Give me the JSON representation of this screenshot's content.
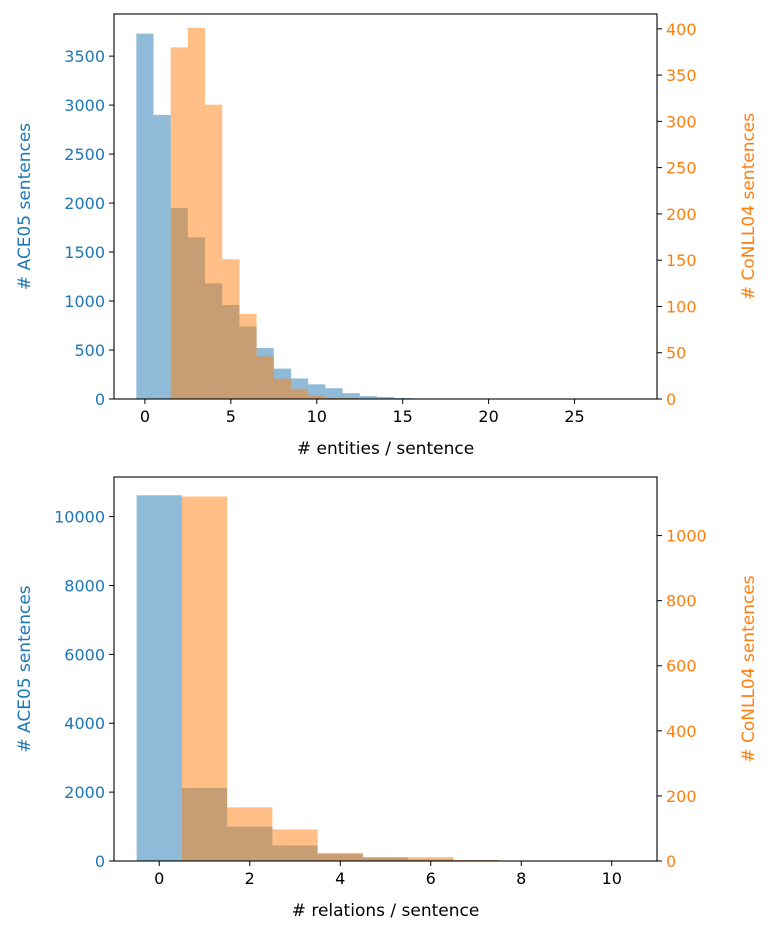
{
  "colors": {
    "ace05": "#1f77b4",
    "conll04": "#ff7f0e",
    "ace05_fill": "#1f77b4",
    "conll04_fill": "#ff7f0e",
    "axis": "#000000"
  },
  "chart_data": [
    {
      "type": "bar",
      "title": "",
      "xlabel": "# entities / sentence",
      "ylabel_left": "# ACE05 sentences",
      "ylabel_right": "# CoNLL04 sentences",
      "xlim": [
        -1.8,
        29.8
      ],
      "ylim_left": [
        0,
        3930
      ],
      "ylim_right": [
        0,
        416
      ],
      "x_ticks": [
        0,
        5,
        10,
        15,
        20,
        25
      ],
      "y_ticks_left": [
        0,
        500,
        1000,
        1500,
        2000,
        2500,
        3000,
        3500
      ],
      "y_ticks_right": [
        0,
        50,
        100,
        150,
        200,
        250,
        300,
        350,
        400
      ],
      "series": [
        {
          "name": "ACE05",
          "axis": "left",
          "bins": [
            {
              "x0": -0.5,
              "x1": 0.5,
              "value": 3730
            },
            {
              "x0": 0.5,
              "x1": 1.5,
              "value": 2900
            },
            {
              "x0": 1.5,
              "x1": 2.5,
              "value": 1950
            },
            {
              "x0": 2.5,
              "x1": 3.5,
              "value": 1650
            },
            {
              "x0": 3.5,
              "x1": 4.5,
              "value": 1180
            },
            {
              "x0": 4.5,
              "x1": 5.5,
              "value": 960
            },
            {
              "x0": 5.5,
              "x1": 6.5,
              "value": 740
            },
            {
              "x0": 6.5,
              "x1": 7.5,
              "value": 520
            },
            {
              "x0": 7.5,
              "x1": 8.5,
              "value": 310
            },
            {
              "x0": 8.5,
              "x1": 9.5,
              "value": 210
            },
            {
              "x0": 9.5,
              "x1": 10.5,
              "value": 150
            },
            {
              "x0": 10.5,
              "x1": 11.5,
              "value": 110
            },
            {
              "x0": 11.5,
              "x1": 12.5,
              "value": 60
            },
            {
              "x0": 12.5,
              "x1": 13.5,
              "value": 30
            },
            {
              "x0": 13.5,
              "x1": 14.5,
              "value": 20
            },
            {
              "x0": 14.5,
              "x1": 15.5,
              "value": 10
            },
            {
              "x0": 15.5,
              "x1": 16.5,
              "value": 6
            },
            {
              "x0": 16.5,
              "x1": 17.5,
              "value": 3
            },
            {
              "x0": 17.5,
              "x1": 28.5,
              "value": 1
            }
          ]
        },
        {
          "name": "CoNLL04",
          "axis": "right",
          "bins": [
            {
              "x0": 1.5,
              "x1": 2.5,
              "value": 380
            },
            {
              "x0": 2.5,
              "x1": 3.5,
              "value": 401
            },
            {
              "x0": 3.5,
              "x1": 4.5,
              "value": 318
            },
            {
              "x0": 4.5,
              "x1": 5.5,
              "value": 151
            },
            {
              "x0": 5.5,
              "x1": 6.5,
              "value": 92
            },
            {
              "x0": 6.5,
              "x1": 7.5,
              "value": 46
            },
            {
              "x0": 7.5,
              "x1": 8.5,
              "value": 22
            },
            {
              "x0": 8.5,
              "x1": 9.5,
              "value": 11
            },
            {
              "x0": 9.5,
              "x1": 10.5,
              "value": 4
            },
            {
              "x0": 10.5,
              "x1": 11.5,
              "value": 1
            },
            {
              "x0": 11.5,
              "x1": 12.5,
              "value": 1
            }
          ]
        }
      ]
    },
    {
      "type": "bar",
      "title": "",
      "xlabel": "# relations / sentence",
      "ylabel_left": "# ACE05 sentences",
      "ylabel_right": "# CoNLL04 sentences",
      "xlim": [
        -1.0,
        11.0
      ],
      "ylim_left": [
        0,
        11150
      ],
      "ylim_right": [
        0,
        1180
      ],
      "x_ticks": [
        0,
        2,
        4,
        6,
        8,
        10
      ],
      "y_ticks_left": [
        0,
        2000,
        4000,
        6000,
        8000,
        10000
      ],
      "y_ticks_right": [
        0,
        200,
        400,
        600,
        800,
        1000
      ],
      "series": [
        {
          "name": "ACE05",
          "axis": "left",
          "bins": [
            {
              "x0": -0.5,
              "x1": 0.5,
              "value": 10620
            },
            {
              "x0": 0.5,
              "x1": 1.5,
              "value": 2120
            },
            {
              "x0": 1.5,
              "x1": 2.5,
              "value": 1000
            },
            {
              "x0": 2.5,
              "x1": 3.5,
              "value": 450
            },
            {
              "x0": 3.5,
              "x1": 4.5,
              "value": 200
            },
            {
              "x0": 4.5,
              "x1": 5.5,
              "value": 100
            },
            {
              "x0": 5.5,
              "x1": 6.5,
              "value": 50
            },
            {
              "x0": 6.5,
              "x1": 7.5,
              "value": 25
            },
            {
              "x0": 7.5,
              "x1": 8.5,
              "value": 12
            },
            {
              "x0": 8.5,
              "x1": 9.5,
              "value": 6
            },
            {
              "x0": 9.5,
              "x1": 10.5,
              "value": 3
            }
          ]
        },
        {
          "name": "CoNLL04",
          "axis": "right",
          "bins": [
            {
              "x0": 0.5,
              "x1": 1.5,
              "value": 1120
            },
            {
              "x0": 1.5,
              "x1": 2.5,
              "value": 165
            },
            {
              "x0": 2.5,
              "x1": 3.5,
              "value": 97
            },
            {
              "x0": 3.5,
              "x1": 4.5,
              "value": 25
            },
            {
              "x0": 4.5,
              "x1": 5.5,
              "value": 12
            },
            {
              "x0": 5.5,
              "x1": 6.5,
              "value": 12
            },
            {
              "x0": 6.5,
              "x1": 7.5,
              "value": 3
            }
          ]
        }
      ]
    }
  ]
}
